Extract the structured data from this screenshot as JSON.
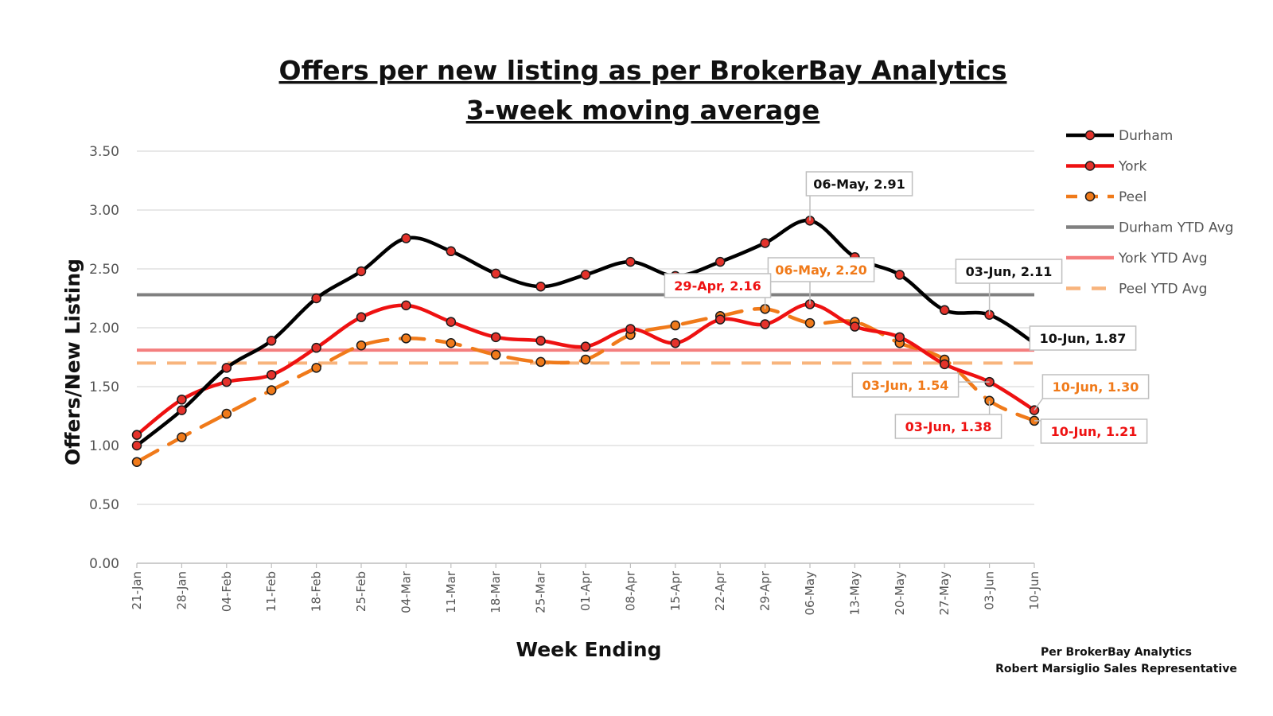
{
  "chart_data": {
    "type": "line",
    "title": "Offers per new listing as per BrokerBay Analytics",
    "subtitle": "3-week moving average",
    "xlabel": "Week Ending",
    "ylabel": "Offers/New Listing",
    "ylim": [
      0,
      3.5
    ],
    "yticks": [
      "0.00",
      "0.50",
      "1.00",
      "1.50",
      "2.00",
      "2.50",
      "3.00",
      "3.50"
    ],
    "grid": true,
    "legend_position": "right",
    "categories": [
      "21-Jan",
      "28-Jan",
      "04-Feb",
      "11-Feb",
      "18-Feb",
      "25-Feb",
      "04-Mar",
      "11-Mar",
      "18-Mar",
      "25-Mar",
      "01-Apr",
      "08-Apr",
      "15-Apr",
      "22-Apr",
      "29-Apr",
      "06-May",
      "13-May",
      "20-May",
      "27-May",
      "03-Jun",
      "10-Jun"
    ],
    "series": [
      {
        "name": "Durham",
        "color": "#000000",
        "marker_fill": "#e4322b",
        "dash": "solid",
        "values": [
          1.0,
          1.3,
          1.66,
          1.89,
          2.25,
          2.48,
          2.76,
          2.65,
          2.46,
          2.35,
          2.45,
          2.56,
          2.44,
          2.56,
          2.72,
          2.91,
          2.6,
          2.45,
          2.15,
          2.11,
          1.87
        ]
      },
      {
        "name": "York",
        "color": "#ee1111",
        "marker_fill": "#e4322b",
        "dash": "solid",
        "values": [
          1.09,
          1.39,
          1.54,
          1.6,
          1.83,
          2.09,
          2.19,
          2.05,
          1.92,
          1.89,
          1.84,
          1.99,
          1.87,
          2.07,
          2.03,
          2.2,
          2.01,
          1.92,
          1.69,
          1.54,
          1.3
        ]
      },
      {
        "name": "Peel",
        "color": "#f07a1a",
        "marker_fill": "#f07a1a",
        "dash": "dashed",
        "values": [
          0.86,
          1.07,
          1.27,
          1.47,
          1.66,
          1.85,
          1.91,
          1.87,
          1.77,
          1.71,
          1.73,
          1.94,
          2.02,
          2.1,
          2.16,
          2.04,
          2.05,
          1.87,
          1.73,
          1.38,
          1.21
        ]
      }
    ],
    "reference_lines": [
      {
        "name": "Durham YTD Avg",
        "value": 2.28,
        "color": "#808080",
        "dash": "solid"
      },
      {
        "name": "York YTD Avg",
        "value": 1.81,
        "color": "#f47e7e",
        "dash": "solid"
      },
      {
        "name": "Peel YTD Avg",
        "value": 1.7,
        "color": "#f8b47c",
        "dash": "dashed"
      }
    ],
    "annotations": [
      {
        "text": "06-May, 2.91",
        "series": 0,
        "index": 15,
        "color": "#111111"
      },
      {
        "text": "03-Jun, 2.11",
        "series": 0,
        "index": 19,
        "color": "#111111"
      },
      {
        "text": "10-Jun, 1.87",
        "series": 0,
        "index": 20,
        "color": "#111111"
      },
      {
        "text": "06-May, 2.20",
        "series": 1,
        "index": 15,
        "color": "#f07a1a"
      },
      {
        "text": "03-Jun, 1.54",
        "series": 1,
        "index": 19,
        "color": "#f07a1a"
      },
      {
        "text": "10-Jun, 1.30",
        "series": 1,
        "index": 20,
        "color": "#f07a1a"
      },
      {
        "text": "29-Apr, 2.16",
        "series": 2,
        "index": 14,
        "color": "#ee1111"
      },
      {
        "text": "03-Jun, 1.38",
        "series": 2,
        "index": 19,
        "color": "#ee1111"
      },
      {
        "text": "10-Jun, 1.21",
        "series": 2,
        "index": 20,
        "color": "#ee1111"
      }
    ],
    "credits": [
      "Per BrokerBay Analytics",
      "Robert Marsiglio Sales Representative"
    ]
  }
}
